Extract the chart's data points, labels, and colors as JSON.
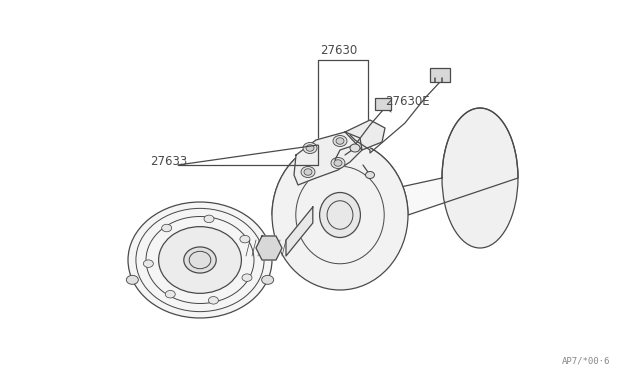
{
  "bg_color": "#ffffff",
  "line_color": "#4a4a4a",
  "label_27630": "27630",
  "label_27630E": "27630E",
  "label_27633": "27633",
  "watermark": "AP7/*00·6",
  "fig_width": 6.4,
  "fig_height": 3.72,
  "dpi": 100
}
